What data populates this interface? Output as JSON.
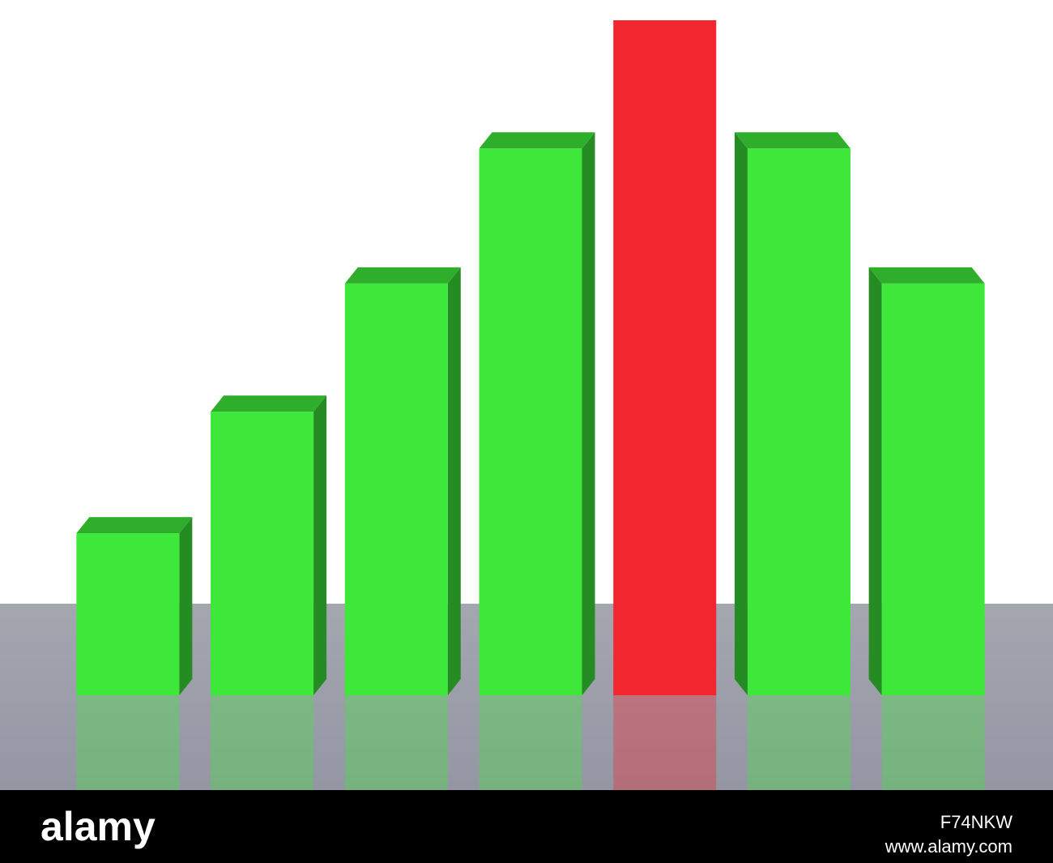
{
  "chart_data": {
    "type": "bar",
    "categories": [
      null,
      null,
      null,
      null,
      null,
      null,
      null
    ],
    "values": [
      24,
      42,
      61,
      81,
      100,
      81,
      61
    ],
    "colors": [
      "#3ee83a",
      "#3ee83a",
      "#3ee83a",
      "#3ee83a",
      "#f2262f",
      "#3ee83a",
      "#3ee83a"
    ],
    "ylim": [
      0,
      100
    ]
  },
  "watermark": {
    "logo": "alamy",
    "image_id": "F74NKW",
    "url": "www.alamy.com"
  }
}
